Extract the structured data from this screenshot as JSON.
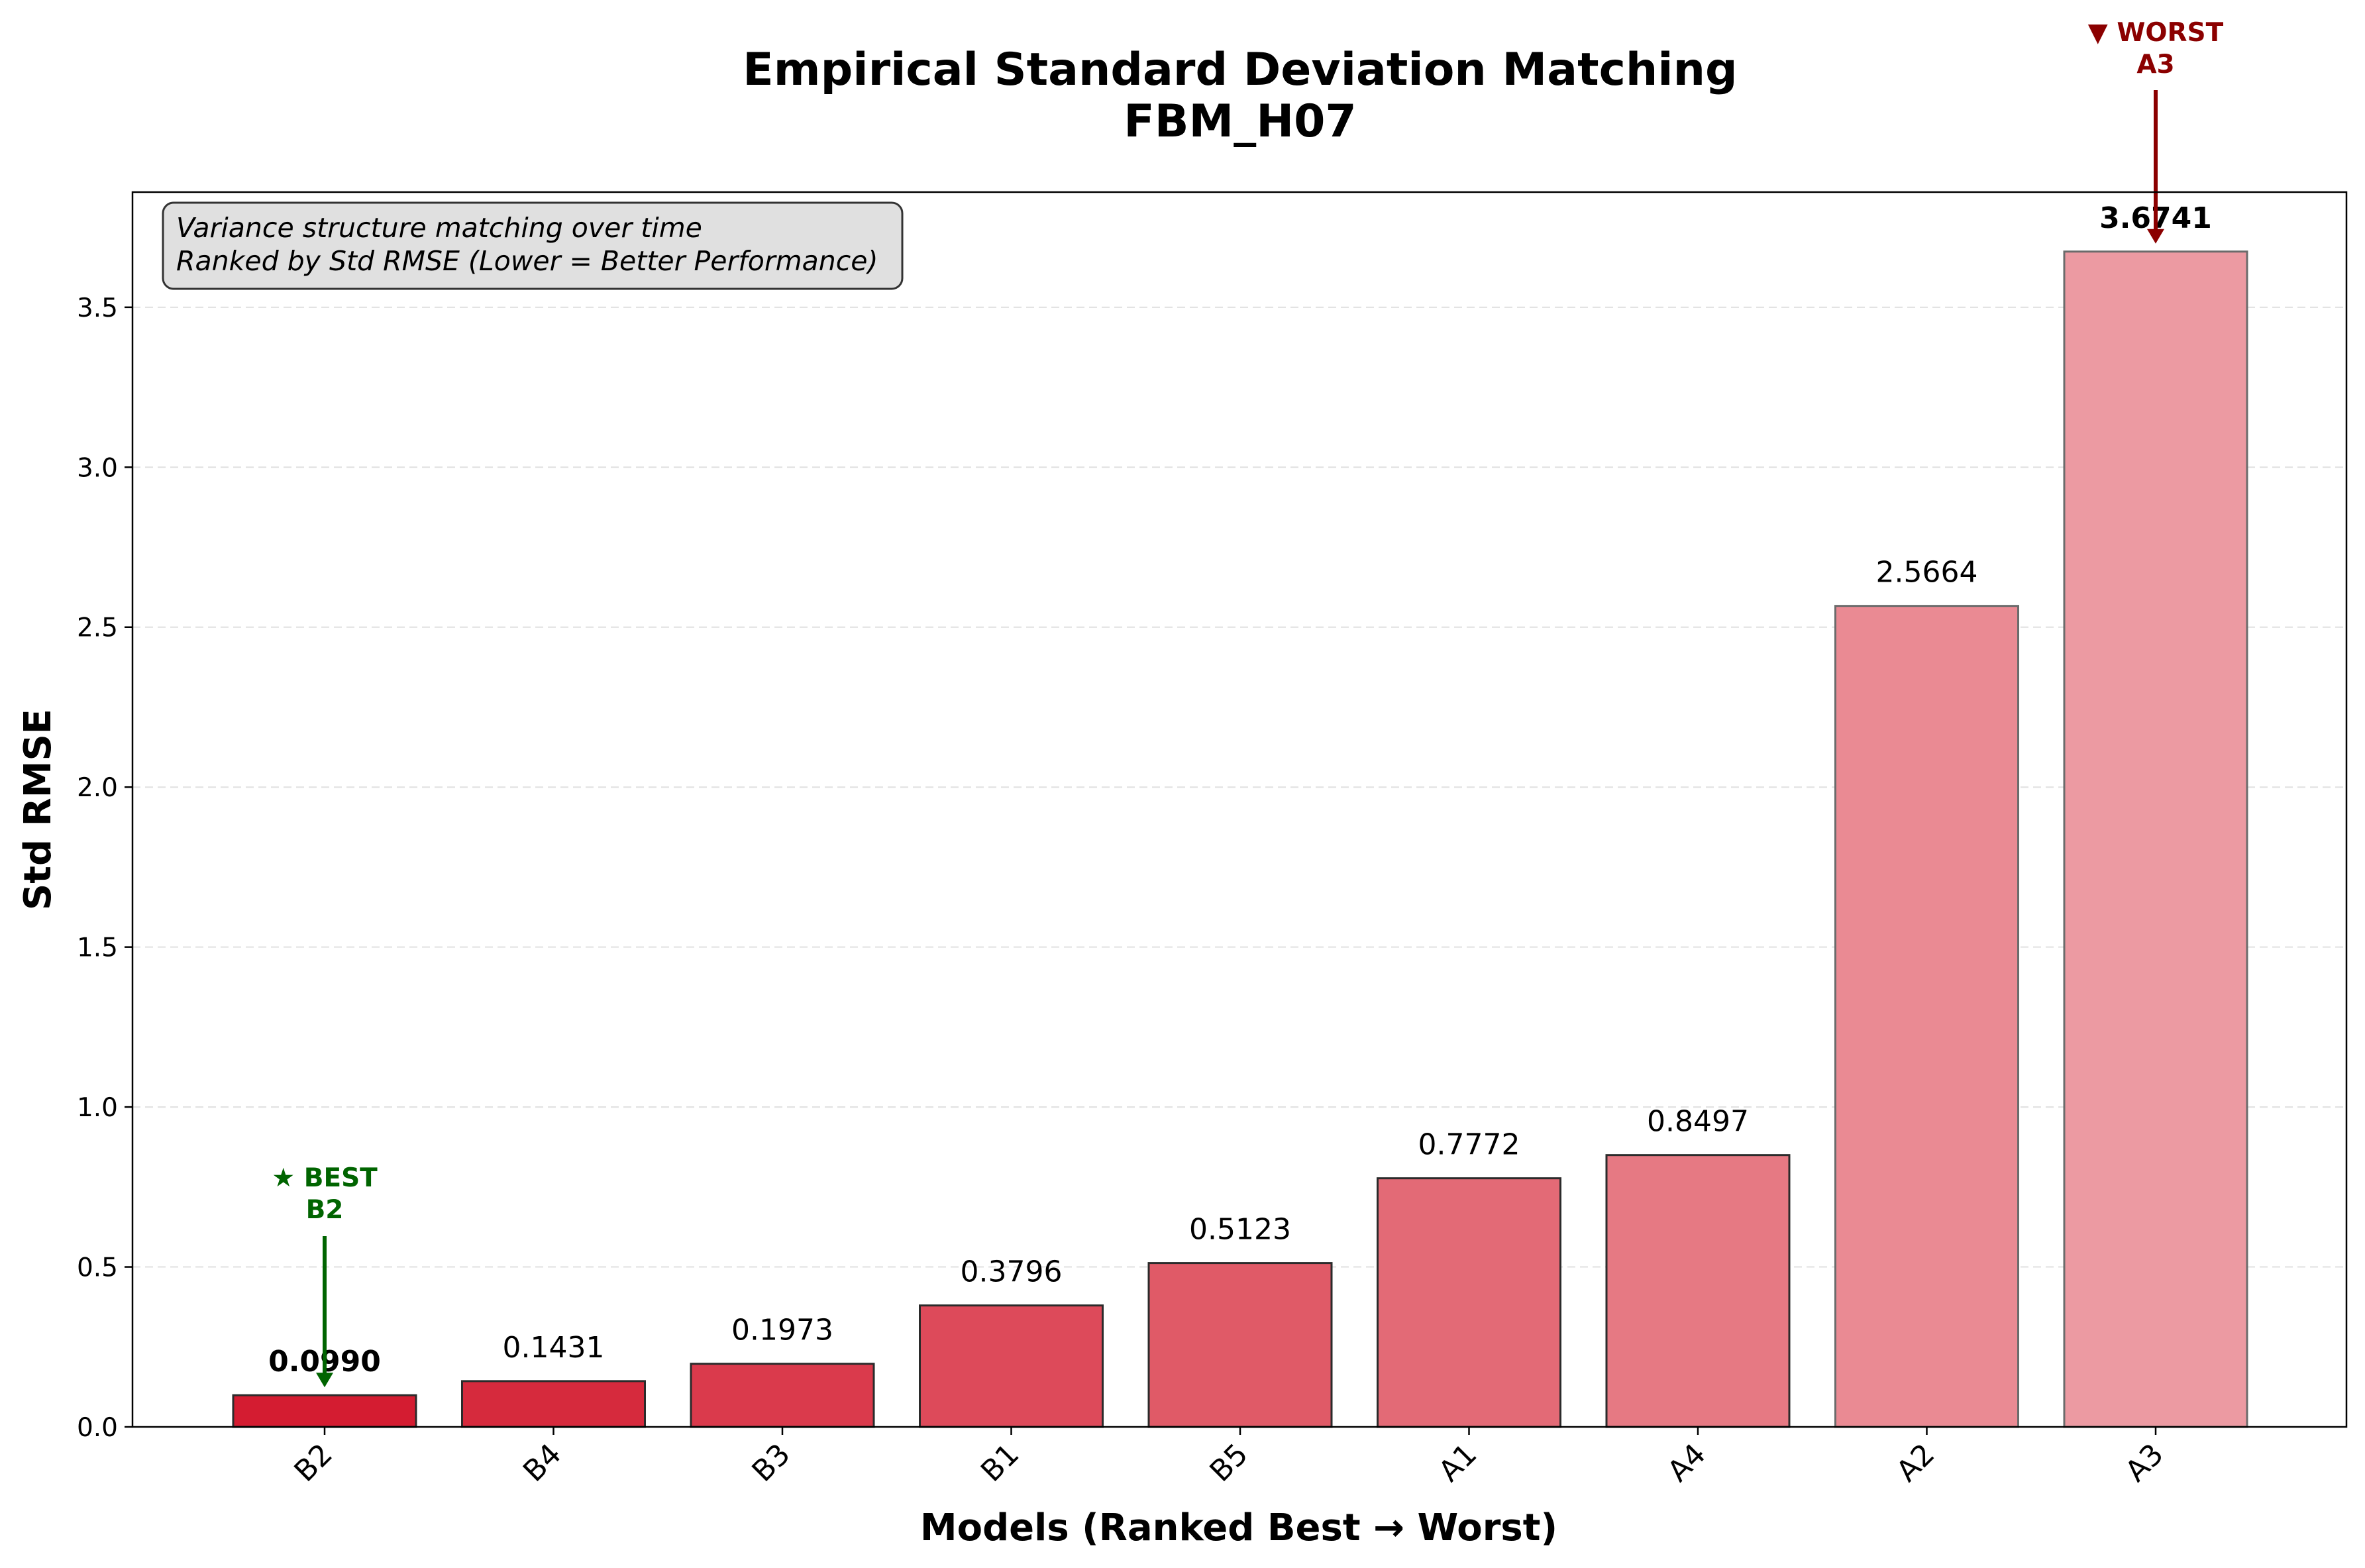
{
  "chart_data": {
    "type": "bar",
    "title": "Empirical Standard Deviation Matching",
    "subtitle": "FBM_H07",
    "xlabel": "Models (Ranked Best → Worst)",
    "ylabel": "Std RMSE",
    "ylim": [
      0,
      3.86
    ],
    "yticks": [
      "0.0",
      "0.5",
      "1.0",
      "1.5",
      "2.0",
      "2.5",
      "3.0",
      "3.5"
    ],
    "grid": "horizontal-dashed",
    "categories": [
      "B2",
      "B4",
      "B3",
      "B1",
      "B5",
      "A1",
      "A4",
      "A2",
      "A3"
    ],
    "values": [
      0.099,
      0.1431,
      0.1973,
      0.3796,
      0.5123,
      0.7772,
      0.8497,
      2.5664,
      3.6741
    ],
    "value_labels": [
      "0.0990",
      "0.1431",
      "0.1973",
      "0.3796",
      "0.5123",
      "0.7772",
      "0.8497",
      "2.5664",
      "3.6741"
    ],
    "bar_colors": [
      "#d41c31",
      "#d62a3d",
      "#da3a4c",
      "#dd4a5a",
      "#e05a67",
      "#e36a76",
      "#e67983",
      "#ea8a93",
      "#ec9aa2"
    ],
    "info_box": {
      "line1": "Variance structure matching over time",
      "line2": "Ranked by Std RMSE (Lower = Better Performance)"
    },
    "best_annotation": {
      "line1": "★ BEST",
      "line2": "B2",
      "color": "#006400"
    },
    "worst_annotation": {
      "line1": "▼ WORST",
      "line2": "A3",
      "color": "#8b0000"
    }
  }
}
